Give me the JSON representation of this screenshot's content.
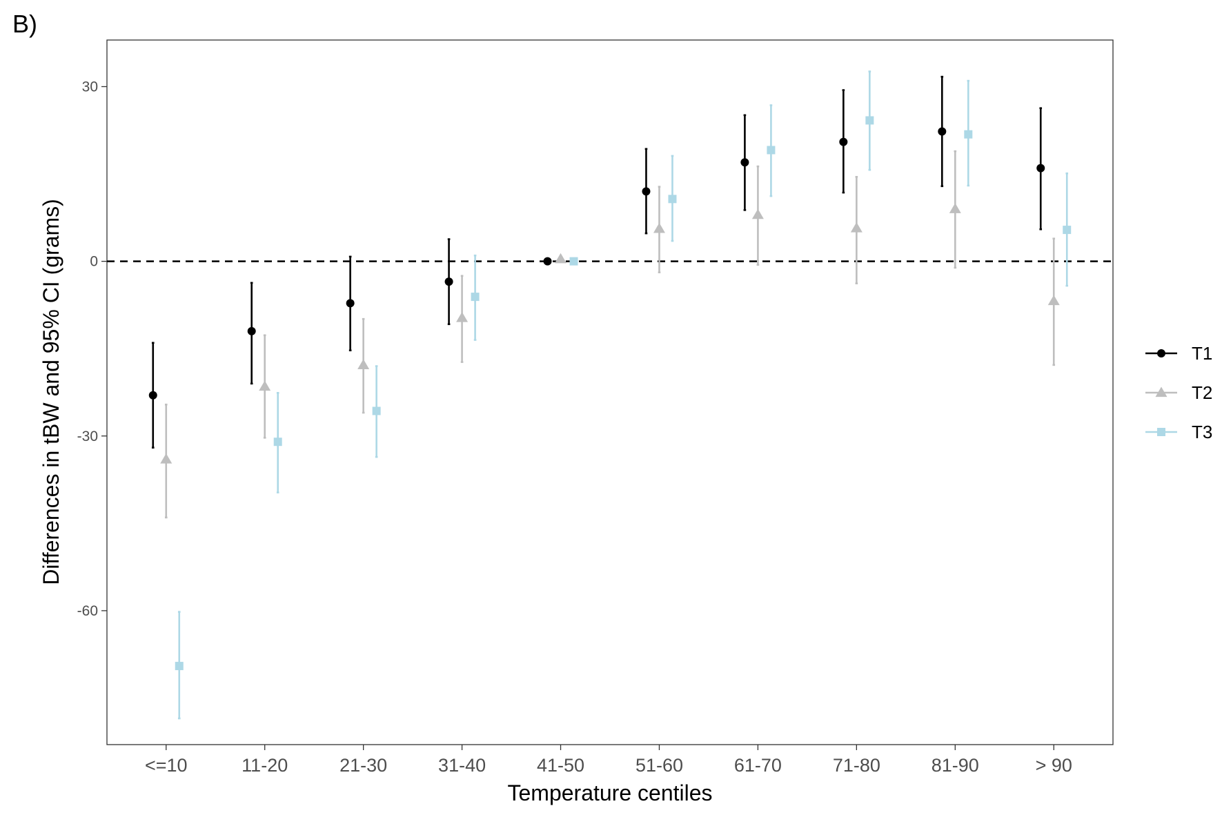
{
  "panel_label": "B)",
  "chart_data": {
    "type": "scatter",
    "subtype": "point-range (estimate with 95% CI error bars)",
    "title": "",
    "xlabel": "Temperature centiles",
    "ylabel": "Differences in tBW and 95% CI (grams)",
    "categories": [
      "<=10",
      "11-20",
      "21-30",
      "31-40",
      "41-50",
      "51-60",
      "61-70",
      "71-80",
      "81-90",
      "> 90"
    ],
    "ylim": [
      -83,
      38
    ],
    "yticks": [
      30,
      0,
      -30,
      -60
    ],
    "ytick_labels": [
      "30",
      "0",
      "-30",
      "-60"
    ],
    "reference_line": {
      "y": 0,
      "style": "dashed",
      "color": "#000000"
    },
    "grid": false,
    "legend_position": "right",
    "series": [
      {
        "name": "T1",
        "color": "#000000",
        "marker": "circle",
        "values": [
          -23,
          -12,
          -7.2,
          -3.5,
          0,
          12,
          17,
          20.5,
          22.3,
          16
        ],
        "lower": [
          -32,
          -21,
          -15.3,
          -10.8,
          0,
          4.8,
          8.8,
          11.8,
          12.9,
          5.5
        ],
        "upper": [
          -14,
          -3.7,
          0.8,
          3.8,
          0,
          19.3,
          25.1,
          29.4,
          31.7,
          26.3
        ]
      },
      {
        "name": "T2",
        "color": "#bebebe",
        "marker": "triangle",
        "values": [
          -34,
          -21.5,
          -17.8,
          -9.7,
          0.4,
          5.6,
          8,
          5.7,
          9,
          -6.8
        ],
        "lower": [
          -44,
          -30.3,
          -26,
          -17.3,
          0.4,
          -1.9,
          -0.6,
          -3.8,
          -1.1,
          -17.8
        ],
        "upper": [
          -24.6,
          -12.7,
          -9.9,
          -2.5,
          0.4,
          12.8,
          16.3,
          14.5,
          18.9,
          3.9
        ]
      },
      {
        "name": "T3",
        "color": "#add8e6",
        "marker": "square",
        "values": [
          -69.5,
          -31,
          -25.7,
          -6.1,
          0,
          10.7,
          19.1,
          24.2,
          21.8,
          5.4
        ],
        "lower": [
          -78.5,
          -39.7,
          -33.6,
          -13.5,
          0,
          3.5,
          11.2,
          15.7,
          13,
          -4.2
        ],
        "upper": [
          -60.2,
          -22.6,
          -18,
          1,
          0,
          18.1,
          26.8,
          32.6,
          31,
          15.1
        ]
      }
    ]
  }
}
